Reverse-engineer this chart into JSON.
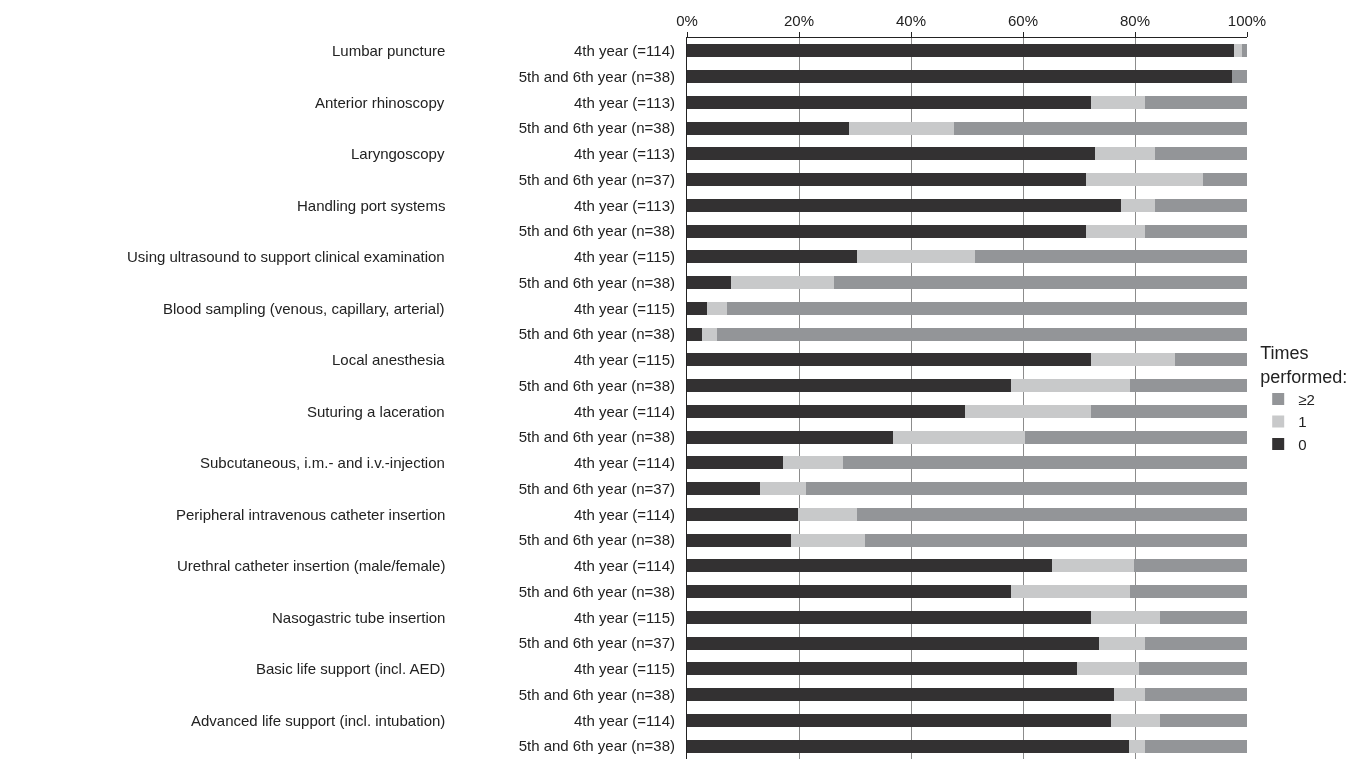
{
  "chart_data": {
    "type": "bar",
    "orientation": "horizontal",
    "stacked": true,
    "categories": [
      "4th year (=114)",
      "5th and 6th year (n=38)",
      "4th year (=113)",
      "5th and 6th year (n=38)",
      "4th year (=113)",
      "5th and 6th year (n=37)",
      "4th year (=113)",
      "5th and 6th year (n=38)",
      "4th year (=115)",
      "5th and 6th year (n=38)",
      "4th year (=115)",
      "5th and 6th year (n=38)",
      "4th year (=115)",
      "5th and 6th year (n=38)",
      "4th year (=114)",
      "5th and 6th year (n=38)",
      "4th year (=114)",
      "5th and 6th year (n=37)",
      "4th year (=114)",
      "5th and 6th year (n=38)",
      "4th year (=114)",
      "5th and 6th year (n=38)",
      "4th year (=115)",
      "5th and 6th year (n=37)",
      "4th year (=115)",
      "5th and 6th year (n=38)",
      "4th year (=114)",
      "5th and 6th year (n=38)"
    ],
    "series": [
      {
        "name": "0",
        "color": "#333132",
        "values": [
          97.6,
          97.3,
          72.1,
          28.9,
          72.9,
          71.2,
          77.5,
          71.2,
          30.4,
          7.9,
          3.5,
          2.6,
          72.1,
          57.9,
          49.6,
          36.7,
          17.2,
          13.0,
          19.9,
          18.5,
          65.2,
          57.9,
          72.1,
          73.6,
          69.7,
          76.3,
          75.7,
          78.9
        ]
      },
      {
        "name": "1",
        "color": "#c8c9ca",
        "values": [
          1.5,
          0,
          9.6,
          18.7,
          10.6,
          21.0,
          6.0,
          10.5,
          21.1,
          18.4,
          3.6,
          2.7,
          15.0,
          21.2,
          22.5,
          23.7,
          10.6,
          8.2,
          10.5,
          13.2,
          14.7,
          21.2,
          12.3,
          8.1,
          11.1,
          5.4,
          8.7,
          2.8
        ]
      },
      {
        "name": "≥2",
        "color": "#939598",
        "values": [
          0.9,
          2.7,
          18.3,
          52.4,
          16.5,
          7.8,
          16.5,
          18.3,
          48.5,
          73.7,
          92.9,
          94.7,
          12.9,
          20.9,
          27.9,
          39.6,
          72.2,
          78.8,
          69.6,
          68.3,
          20.1,
          20.9,
          15.6,
          18.3,
          19.2,
          18.3,
          15.6,
          18.3
        ]
      }
    ],
    "xlim": [
      0,
      100
    ],
    "xticks": [
      {
        "value": 0,
        "label": "0%"
      },
      {
        "value": 20,
        "label": "20%"
      },
      {
        "value": 40,
        "label": "40%"
      },
      {
        "value": 60,
        "label": "60%"
      },
      {
        "value": 80,
        "label": "80%"
      },
      {
        "value": 100,
        "label": "100%"
      }
    ],
    "grid": "x",
    "legend": "right",
    "legend_title": "Times performed:",
    "annotations": [
      "Lumbar puncture",
      "Anterior rhinoscopy",
      "Laryngoscopy",
      "Handling port systems",
      "Using ultrasound to support clinical examination",
      "Blood sampling (venous, capillary, arterial)",
      "Local anesthesia",
      "Suturing a laceration",
      "Subcutaneous, i.m.- and i.v.-injection",
      "Peripheral intravenous catheter insertion",
      "Urethral catheter insertion (male/female)",
      "Nasogastric tube insertion",
      "Basic life support (incl. AED)",
      "Advanced life support (incl. intubation)"
    ]
  }
}
